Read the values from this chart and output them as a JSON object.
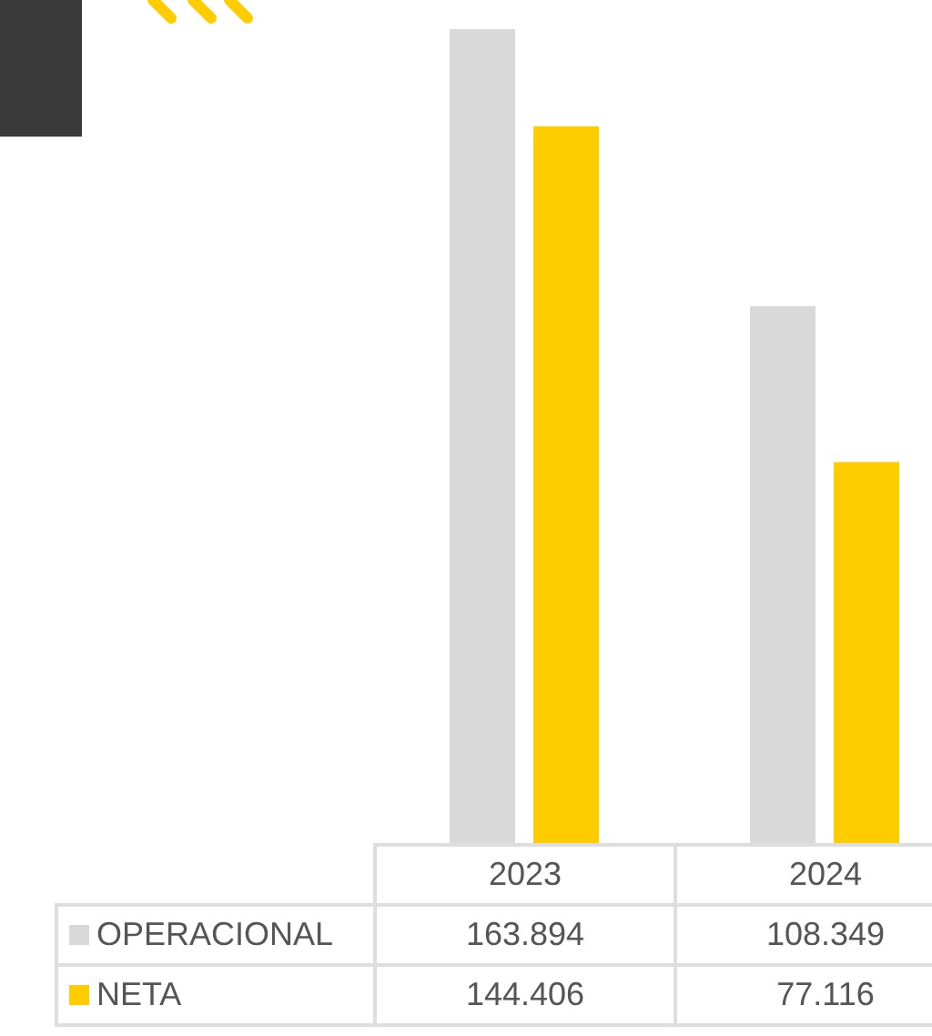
{
  "chart_data": {
    "type": "bar",
    "categories": [
      "2023",
      "2024"
    ],
    "series": [
      {
        "name": "OPERACIONAL",
        "color": "#d9d9d9",
        "values": [
          163894,
          108349
        ],
        "value_labels": [
          "163.894",
          "108.349"
        ]
      },
      {
        "name": "NETA",
        "color": "#ffcc00",
        "values": [
          144406,
          77116
        ],
        "value_labels": [
          "144.406",
          "77.116"
        ]
      }
    ],
    "legend": "bottom",
    "grid": false
  }
}
